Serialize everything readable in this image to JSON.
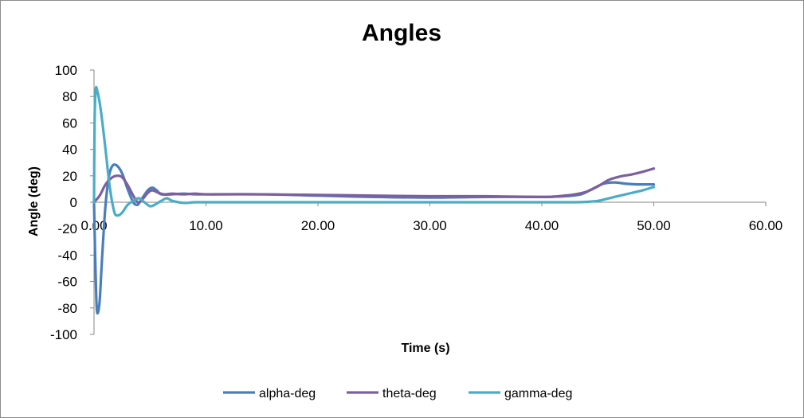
{
  "chart_data": {
    "type": "line",
    "title": "Angles",
    "xlabel": "Time (s)",
    "ylabel": "Angle (deg)",
    "xlim": [
      0,
      60
    ],
    "ylim": [
      -100,
      100
    ],
    "x_ticks": [
      0,
      10,
      20,
      30,
      40,
      50,
      60
    ],
    "x_tick_labels": [
      "0.00",
      "10.00",
      "20.00",
      "30.00",
      "40.00",
      "50.00",
      "60.00"
    ],
    "y_ticks": [
      100,
      80,
      60,
      40,
      20,
      0,
      -20,
      -40,
      -60,
      -80,
      -100
    ],
    "y_tick_labels": [
      "100",
      "80",
      "60",
      "40",
      "20",
      "0",
      "-20",
      "-40",
      "-60",
      "-80",
      "-100"
    ],
    "grid": false,
    "legend_position": "bottom",
    "series": [
      {
        "name": "alpha-deg",
        "color": "#4a7ebb",
        "points": [
          [
            0,
            0
          ],
          [
            0.1,
            -40
          ],
          [
            0.2,
            -72
          ],
          [
            0.3,
            -84
          ],
          [
            0.5,
            -75
          ],
          [
            0.7,
            -45
          ],
          [
            1.0,
            -5
          ],
          [
            1.3,
            18
          ],
          [
            1.6,
            27
          ],
          [
            2.0,
            28
          ],
          [
            2.5,
            22
          ],
          [
            3.0,
            10
          ],
          [
            3.5,
            0
          ],
          [
            3.8,
            -2
          ],
          [
            4.0,
            -1
          ],
          [
            4.3,
            3
          ],
          [
            4.8,
            9
          ],
          [
            5.2,
            11
          ],
          [
            5.6,
            9
          ],
          [
            6.0,
            6
          ],
          [
            7,
            6
          ],
          [
            8,
            6.5
          ],
          [
            9,
            6
          ],
          [
            10,
            6
          ],
          [
            15,
            6
          ],
          [
            20,
            5
          ],
          [
            25,
            4
          ],
          [
            30,
            3.5
          ],
          [
            35,
            4
          ],
          [
            40,
            4
          ],
          [
            42,
            4.5
          ],
          [
            43.5,
            6
          ],
          [
            44.5,
            10
          ],
          [
            45.5,
            14
          ],
          [
            46.5,
            15
          ],
          [
            47.5,
            14
          ],
          [
            48.5,
            13.5
          ],
          [
            50,
            13.5
          ]
        ]
      },
      {
        "name": "theta-deg",
        "color": "#7d5fa0",
        "points": [
          [
            0,
            0
          ],
          [
            0.5,
            5
          ],
          [
            1.0,
            13
          ],
          [
            1.5,
            18
          ],
          [
            2.0,
            20
          ],
          [
            2.5,
            19
          ],
          [
            3.0,
            13
          ],
          [
            3.5,
            5
          ],
          [
            3.9,
            0
          ],
          [
            4.3,
            2
          ],
          [
            4.8,
            7
          ],
          [
            5.2,
            9
          ],
          [
            5.8,
            7
          ],
          [
            6.3,
            6
          ],
          [
            7,
            6.5
          ],
          [
            8,
            6
          ],
          [
            9,
            6.5
          ],
          [
            10,
            6
          ],
          [
            12,
            6
          ],
          [
            15,
            6
          ],
          [
            20,
            5.5
          ],
          [
            25,
            5
          ],
          [
            30,
            4.5
          ],
          [
            35,
            4.5
          ],
          [
            40,
            4
          ],
          [
            41,
            4.2
          ],
          [
            42,
            5
          ],
          [
            43,
            6
          ],
          [
            44,
            8
          ],
          [
            45,
            12
          ],
          [
            46,
            17
          ],
          [
            47,
            19.5
          ],
          [
            48,
            21
          ],
          [
            49,
            23
          ],
          [
            50,
            25.5
          ]
        ]
      },
      {
        "name": "gamma-deg",
        "color": "#4bacc6",
        "points": [
          [
            0,
            0
          ],
          [
            0.05,
            60
          ],
          [
            0.15,
            85
          ],
          [
            0.3,
            84
          ],
          [
            0.6,
            70
          ],
          [
            1.0,
            42
          ],
          [
            1.4,
            12
          ],
          [
            1.8,
            -7
          ],
          [
            2.1,
            -10
          ],
          [
            2.5,
            -8
          ],
          [
            3.0,
            -2
          ],
          [
            3.5,
            1
          ],
          [
            4.0,
            3
          ],
          [
            4.5,
            0
          ],
          [
            5.0,
            -3
          ],
          [
            5.4,
            -2
          ],
          [
            6.0,
            1
          ],
          [
            6.5,
            3
          ],
          [
            7.0,
            1
          ],
          [
            8,
            -0.5
          ],
          [
            9,
            0
          ],
          [
            10,
            0
          ],
          [
            20,
            0
          ],
          [
            30,
            0
          ],
          [
            40,
            0
          ],
          [
            43,
            0
          ],
          [
            44,
            0.3
          ],
          [
            45,
            1
          ],
          [
            46,
            3
          ],
          [
            47,
            5
          ],
          [
            48,
            7
          ],
          [
            49,
            9
          ],
          [
            50,
            11.5
          ]
        ]
      }
    ]
  }
}
